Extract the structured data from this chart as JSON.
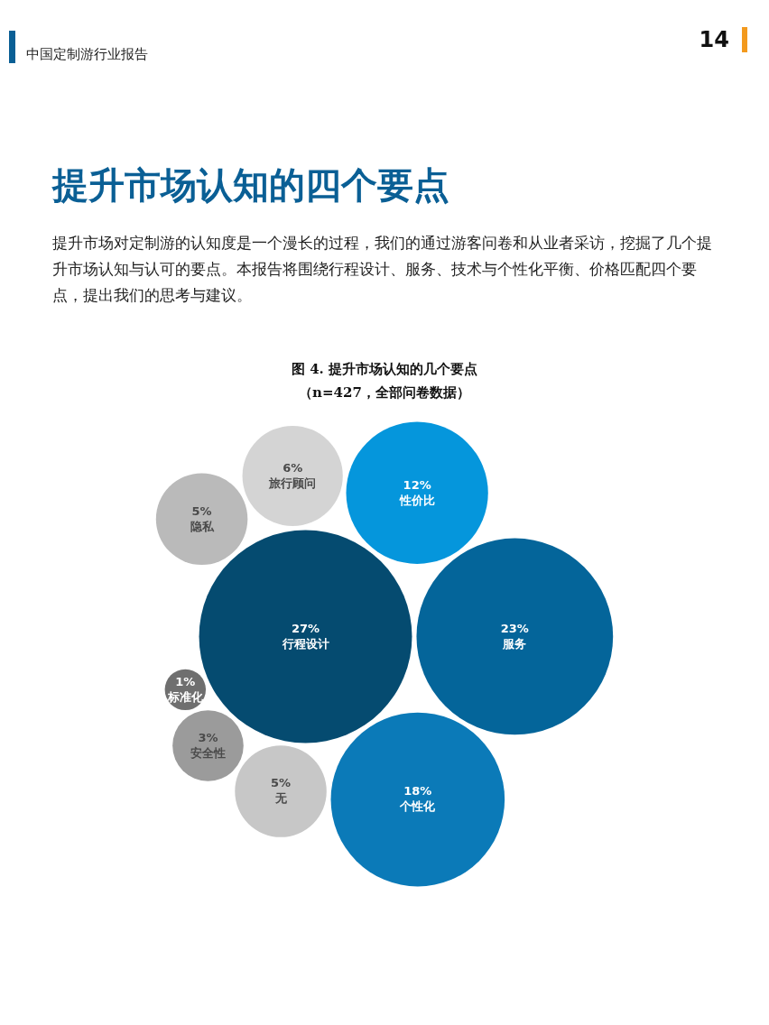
{
  "chart_data": {
    "type": "other",
    "title": "图 4. 提升市场认知的几个要点",
    "subtitle": "（n=427，全部问卷数据）",
    "annotations": [
      "中国定制游行业报告",
      "14",
      "提升市场认知的四个要点",
      "提升市场对定制游的认知度是一个漫长的过程，我们的通过游客问卷和从业者采访，挖掘了几个提升市场认知与认可的要点。本报告将围绕行程设计、服务、技术与个性化平衡、价格匹配四个要点，提出我们的思考与建议。"
    ],
    "categories": [
      "行程设计",
      "服务",
      "个性化",
      "性价比",
      "旅行顾问",
      "无",
      "隐私",
      "安全性",
      "标准化"
    ],
    "values": [
      27,
      23,
      18,
      12,
      6,
      5,
      5,
      3,
      1
    ],
    "value_labels": [
      "27%",
      "23%",
      "18%",
      "12%",
      "6%",
      "5%",
      "5%",
      "3%",
      "1%"
    ],
    "colors": [
      "#054b70",
      "#04659a",
      "#0b7ab8",
      "#0596dc",
      "#d4d4d4",
      "#c7c7c7",
      "#bababa",
      "#9b9b9b",
      "#6f6f6f"
    ]
  }
}
